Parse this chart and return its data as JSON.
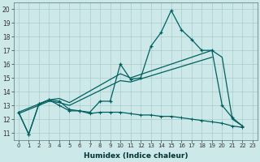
{
  "xlabel": "Humidex (Indice chaleur)",
  "bg_color": "#cce8e8",
  "grid_color": "#aacccc",
  "line_color": "#006060",
  "xlim": [
    -0.5,
    23.5
  ],
  "ylim": [
    10.5,
    20.5
  ],
  "xticks": [
    0,
    1,
    2,
    3,
    4,
    5,
    6,
    7,
    8,
    9,
    10,
    11,
    12,
    13,
    14,
    15,
    16,
    17,
    18,
    19,
    20,
    21,
    22,
    23
  ],
  "yticks": [
    11,
    12,
    13,
    14,
    15,
    16,
    17,
    18,
    19,
    20
  ],
  "line_main_x": [
    0,
    1,
    2,
    3,
    4,
    5,
    6,
    7,
    8,
    9,
    10,
    11,
    12,
    13,
    14,
    15,
    16,
    17,
    18,
    19,
    20,
    21,
    22
  ],
  "line_main_y": [
    12.5,
    10.9,
    13.1,
    13.4,
    13.3,
    12.7,
    12.6,
    12.5,
    13.3,
    13.3,
    16.0,
    14.9,
    15.0,
    17.3,
    18.3,
    19.9,
    18.5,
    17.8,
    17.0,
    17.0,
    13.0,
    12.1,
    11.5
  ],
  "line_trend1_x": [
    0,
    3,
    4,
    5,
    10,
    11,
    19,
    20,
    21,
    22
  ],
  "line_trend1_y": [
    12.5,
    13.4,
    13.5,
    13.2,
    15.3,
    15.0,
    17.0,
    16.5,
    12.0,
    11.5
  ],
  "line_trend2_x": [
    0,
    3,
    4,
    5,
    10,
    11,
    19
  ],
  "line_trend2_y": [
    12.4,
    13.3,
    13.2,
    13.0,
    14.8,
    14.7,
    16.5
  ],
  "line_bot_x": [
    0,
    1,
    2,
    3,
    4,
    5,
    6,
    7,
    8,
    9,
    10,
    11,
    12,
    13,
    14,
    15,
    16,
    17,
    18,
    19,
    20,
    21,
    22
  ],
  "line_bot_y": [
    12.5,
    10.9,
    13.1,
    13.4,
    13.0,
    12.6,
    12.6,
    12.4,
    12.5,
    12.5,
    12.5,
    12.4,
    12.3,
    12.3,
    12.2,
    12.2,
    12.1,
    12.0,
    11.9,
    11.8,
    11.7,
    11.5,
    11.4
  ]
}
